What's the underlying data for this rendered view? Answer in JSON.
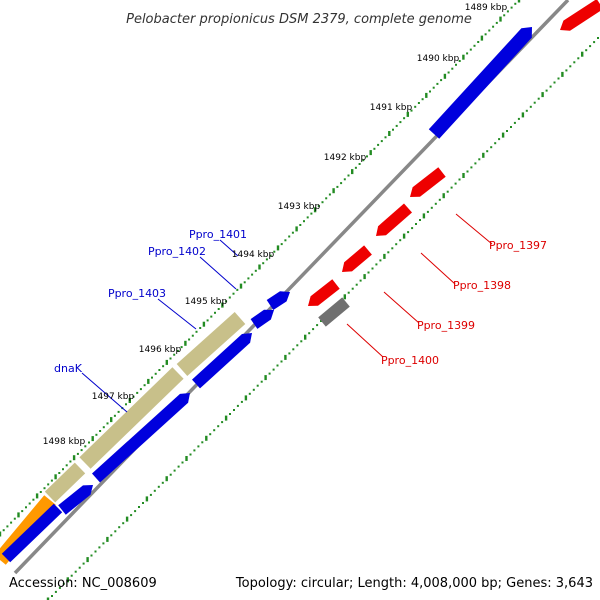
{
  "title": "Pelobacter propionicus DSM 2379, complete genome",
  "footer": {
    "accession": "Accession: NC_008609",
    "summary": "Topology: circular; Length: 4,008,000 bp; Genes: 3,643"
  },
  "colors": {
    "backbone": "#888888",
    "dots": "#228B22",
    "forward_gene": "#0000DD",
    "reverse_gene": "#EE0000",
    "pseudo_gene": "#707070",
    "feature_khaki": "#C8C08A",
    "feature_orange": "#FF9900",
    "forward_label": "#0000CC",
    "reverse_label": "#DD0000"
  },
  "scale_ticks": [
    "1489 kbp",
    "1490 kbp",
    "1491 kbp",
    "1492 kbp",
    "1493 kbp",
    "1494 kbp",
    "1495 kbp",
    "1496 kbp",
    "1497 kbp",
    "1498 kbp"
  ],
  "gene_labels": {
    "forward": [
      "Ppro_1401",
      "Ppro_1402",
      "Ppro_1403",
      "dnaK"
    ],
    "reverse": [
      "Ppro_1397",
      "Ppro_1398",
      "Ppro_1399",
      "Ppro_1400"
    ]
  }
}
